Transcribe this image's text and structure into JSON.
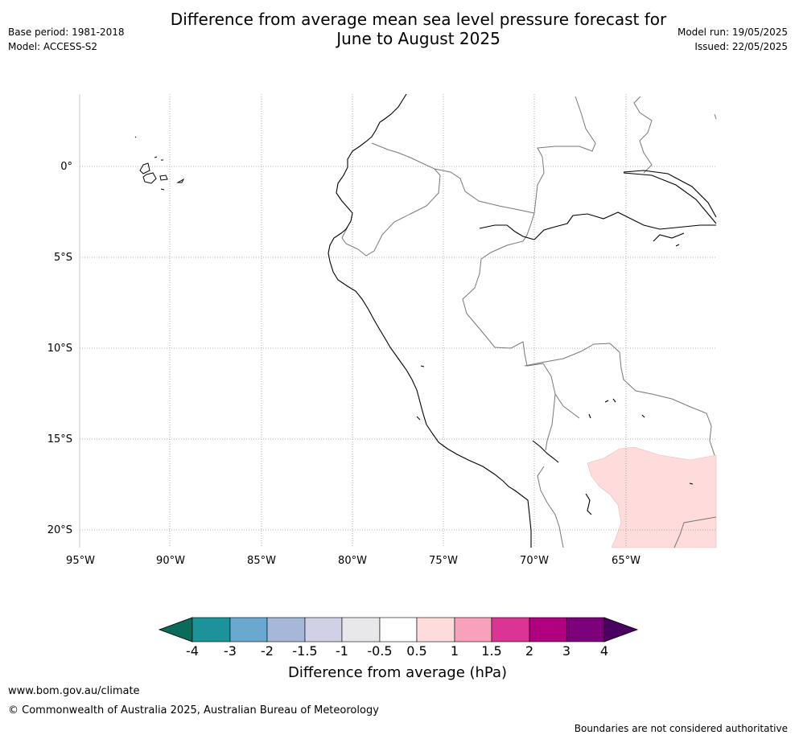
{
  "header": {
    "title_line1": "Difference from average mean sea level pressure forecast for",
    "title_line2": "June to August 2025",
    "base_period": "Base period: 1981-2018",
    "model": "Model: ACCESS-S2",
    "model_run": "Model run: 19/05/2025",
    "issued": "Issued: 22/05/2025"
  },
  "map": {
    "lat_labels": [
      "0°",
      "5°S",
      "10°S",
      "15°S",
      "20°S"
    ],
    "lon_labels": [
      "95°W",
      "90°W",
      "85°W",
      "80°W",
      "75°W",
      "70°W",
      "65°W"
    ],
    "anomaly_colors": {
      "positive_0_5_to_1": "#fddcdb"
    }
  },
  "legend": {
    "title": "Difference from average (hPa)",
    "tick_labels": [
      "-4",
      "-3",
      "-2",
      "-1.5",
      "-1",
      "-0.5",
      "0.5",
      "1",
      "1.5",
      "2",
      "3",
      "4"
    ],
    "colors": [
      "#0b6b5a",
      "#1b9399",
      "#6aa8d0",
      "#a6b7d8",
      "#d0d0e6",
      "#e8e8ea",
      "#ffffff",
      "#fddcdb",
      "#f8a0bc",
      "#dc3494",
      "#b0007f",
      "#7b007a",
      "#4a0060"
    ]
  },
  "footer": {
    "url": "www.bom.gov.au/climate",
    "copyright": "© Commonwealth of Australia 2025, Australian Bureau of Meteorology",
    "note": "Boundaries are not considered authoritative"
  }
}
